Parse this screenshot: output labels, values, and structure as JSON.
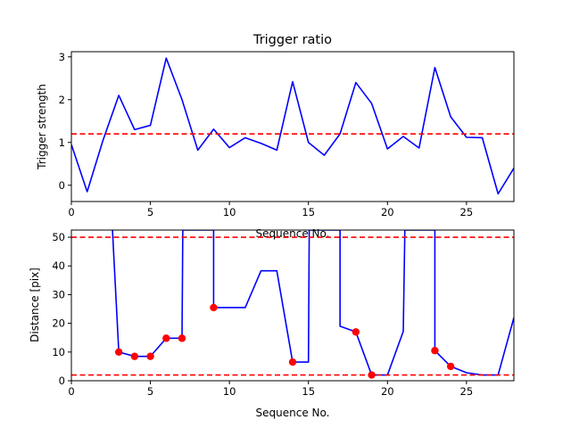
{
  "chart_data": [
    {
      "type": "line",
      "title": "Trigger ratio",
      "xlabel": "Sequence No.",
      "ylabel": "Trigger strength",
      "xlim": [
        0,
        28
      ],
      "ylim": [
        -0.38,
        3.12
      ],
      "xticks": [
        0,
        5,
        10,
        15,
        20,
        25
      ],
      "yticks": [
        0,
        1,
        2,
        3
      ],
      "grid": false,
      "series": [
        {
          "color": "#0000ff",
          "x": [
            0,
            1,
            2,
            3,
            4,
            5,
            6,
            7,
            8,
            9,
            10,
            11,
            12,
            13,
            14,
            15,
            16,
            17,
            18,
            19,
            20,
            21,
            22,
            23,
            24,
            25,
            26,
            27,
            28
          ],
          "values": [
            0.95,
            -0.15,
            1.05,
            2.1,
            1.3,
            1.4,
            2.97,
            2.0,
            0.82,
            1.31,
            0.88,
            1.11,
            0.98,
            0.82,
            2.42,
            1.0,
            0.7,
            1.2,
            2.4,
            1.91,
            0.85,
            1.14,
            0.87,
            2.75,
            1.6,
            1.12,
            1.11,
            -0.2,
            0.4
          ]
        }
      ],
      "hlines": [
        {
          "y": 1.2,
          "color": "#ff0000",
          "style": "dashed"
        }
      ]
    },
    {
      "type": "line",
      "title": "",
      "xlabel": "Sequence No.",
      "ylabel": "Distance [pix]",
      "xlim": [
        0,
        28
      ],
      "ylim": [
        0,
        52.5
      ],
      "xticks": [
        0,
        5,
        10,
        15,
        20,
        25
      ],
      "yticks": [
        0,
        10,
        20,
        30,
        40,
        50
      ],
      "grid": false,
      "series": [
        {
          "color": "#0000ff",
          "x": [
            2.6,
            3,
            4,
            5,
            6,
            7,
            7.05,
            9,
            9,
            11,
            12,
            13,
            14,
            15,
            15.05,
            17,
            17,
            18,
            19,
            20,
            21,
            21.1,
            23,
            23,
            24,
            25,
            26,
            27,
            28
          ],
          "values": [
            52.5,
            10,
            8.5,
            8.5,
            14.8,
            14.8,
            52.5,
            52.5,
            25.5,
            25.5,
            38.3,
            38.3,
            6.5,
            6.5,
            52.5,
            52.5,
            19,
            17,
            2,
            2,
            17.2,
            52.5,
            52.5,
            10.5,
            5,
            2.8,
            2,
            2,
            22
          ]
        }
      ],
      "markers": {
        "color": "#ff0000",
        "x": [
          3,
          4,
          5,
          6,
          7,
          9,
          14,
          18,
          19,
          23,
          24
        ],
        "values": [
          10,
          8.5,
          8.5,
          14.8,
          14.8,
          25.5,
          6.5,
          17,
          2,
          10.5,
          5
        ]
      },
      "hlines": [
        {
          "y": 50,
          "color": "#ff0000",
          "style": "dashed"
        },
        {
          "y": 2,
          "color": "#ff0000",
          "style": "dashed"
        }
      ]
    }
  ]
}
